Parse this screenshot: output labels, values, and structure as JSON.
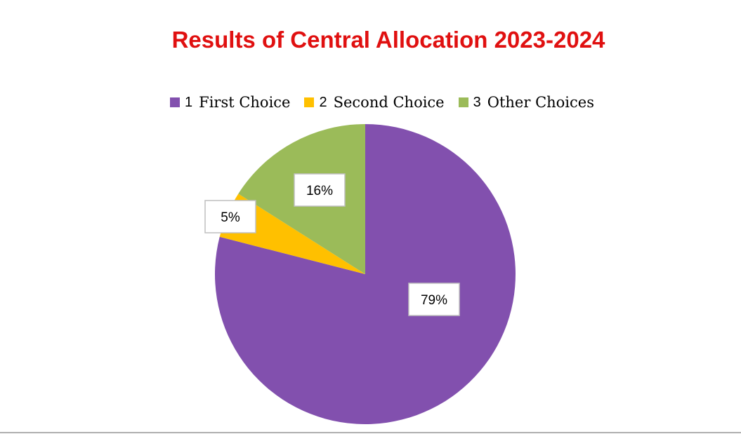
{
  "chart_data": {
    "type": "pie",
    "title": "Results of Central Allocation 2023-2024",
    "categories": [
      "1 First Choice",
      "2 Second Choice",
      "3 Other Choices"
    ],
    "legend": [
      {
        "num": "1",
        "label": "First Choice"
      },
      {
        "num": "2",
        "label": "Second Choice"
      },
      {
        "num": "3",
        "label": "Other Choices"
      }
    ],
    "values": [
      79,
      5,
      16
    ],
    "data_labels": [
      "79%",
      "5%",
      "16%"
    ],
    "colors": [
      "#8250ae",
      "#ffc000",
      "#9bbb59"
    ],
    "legend_position": "top"
  }
}
